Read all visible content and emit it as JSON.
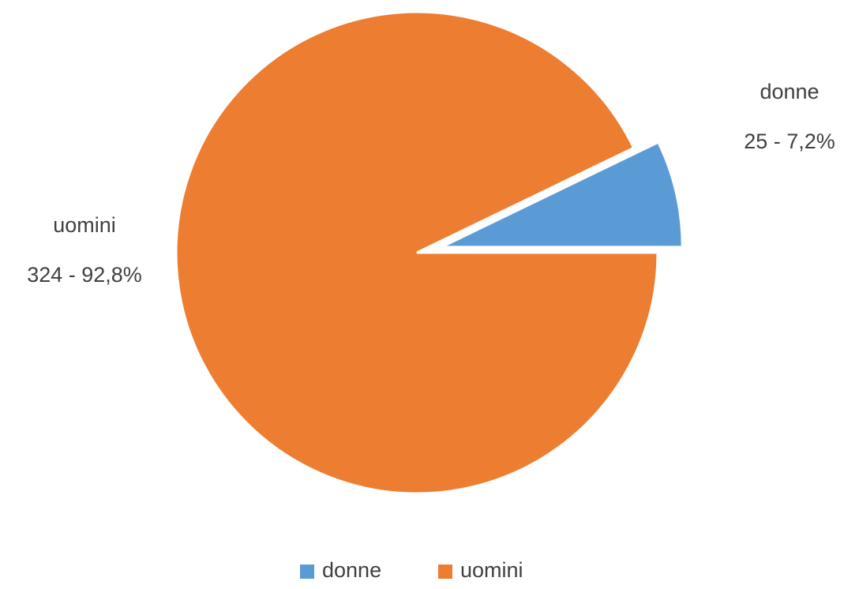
{
  "chart_data": {
    "type": "pie",
    "categories": [
      "donne",
      "uomini"
    ],
    "values": [
      25,
      324
    ],
    "value_labels": [
      "25 - 7,2%",
      "324 - 92,8%"
    ],
    "colors": [
      "#5b9bd5",
      "#ed7d31"
    ],
    "legend": "bottom"
  }
}
